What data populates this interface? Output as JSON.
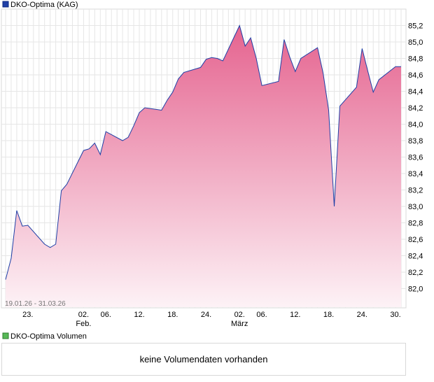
{
  "chart_data": [
    {
      "type": "area",
      "legend": "DKO-Optima (KAG)",
      "date_range_label": "19.01.26 - 31.03.26",
      "ylim": [
        81.88,
        85.38
      ],
      "y_ticks": [
        "82,0",
        "82,2",
        "82,4",
        "82,6",
        "82,8",
        "83,0",
        "83,2",
        "83,4",
        "83,6",
        "83,8",
        "84,0",
        "84,2",
        "84,4",
        "84,6",
        "84,8",
        "85,0",
        "85,2"
      ],
      "x_ticks": [
        {
          "label": "23.",
          "sub": "",
          "date": "2026-01-23"
        },
        {
          "label": "02.",
          "sub": "Feb.",
          "date": "2026-02-02"
        },
        {
          "label": "06.",
          "sub": "",
          "date": "2026-02-06"
        },
        {
          "label": "12.",
          "sub": "",
          "date": "2026-02-12"
        },
        {
          "label": "18.",
          "sub": "",
          "date": "2026-02-18"
        },
        {
          "label": "24.",
          "sub": "",
          "date": "2026-02-24"
        },
        {
          "label": "02.",
          "sub": "März",
          "date": "2026-03-02"
        },
        {
          "label": "06.",
          "sub": "",
          "date": "2026-03-06"
        },
        {
          "label": "12.",
          "sub": "",
          "date": "2026-03-12"
        },
        {
          "label": "18.",
          "sub": "",
          "date": "2026-03-18"
        },
        {
          "label": "24.",
          "sub": "",
          "date": "2026-03-24"
        },
        {
          "label": "30.",
          "sub": "",
          "date": "2026-03-30"
        }
      ],
      "x_range": [
        "2026-01-19",
        "2026-03-31"
      ],
      "series": [
        {
          "dates": [
            "2026-01-19",
            "2026-01-20",
            "2026-01-21",
            "2026-01-22",
            "2026-01-23",
            "2026-01-26",
            "2026-01-27",
            "2026-01-28",
            "2026-01-29",
            "2026-01-30",
            "2026-02-02",
            "2026-02-03",
            "2026-02-04",
            "2026-02-05",
            "2026-02-06",
            "2026-02-09",
            "2026-02-10",
            "2026-02-11",
            "2026-02-12",
            "2026-02-13",
            "2026-02-16",
            "2026-02-17",
            "2026-02-18",
            "2026-02-19",
            "2026-02-20",
            "2026-02-23",
            "2026-02-24",
            "2026-02-25",
            "2026-02-26",
            "2026-02-27",
            "2026-03-02",
            "2026-03-03",
            "2026-03-04",
            "2026-03-05",
            "2026-03-06",
            "2026-03-09",
            "2026-03-10",
            "2026-03-11",
            "2026-03-12",
            "2026-03-13",
            "2026-03-16",
            "2026-03-17",
            "2026-03-18",
            "2026-03-19",
            "2026-03-20",
            "2026-03-23",
            "2026-03-24",
            "2026-03-25",
            "2026-03-26",
            "2026-03-27",
            "2026-03-30",
            "2026-03-31"
          ],
          "values": [
            82.11,
            82.37,
            82.95,
            82.76,
            82.77,
            82.54,
            82.5,
            82.54,
            83.19,
            83.27,
            83.68,
            83.7,
            83.77,
            83.63,
            83.91,
            83.8,
            83.84,
            83.98,
            84.14,
            84.2,
            84.17,
            84.29,
            84.39,
            84.55,
            84.63,
            84.69,
            84.79,
            84.81,
            84.8,
            84.77,
            85.2,
            84.95,
            85.05,
            84.8,
            84.47,
            84.52,
            85.03,
            84.82,
            84.64,
            84.8,
            84.93,
            84.62,
            84.17,
            83.0,
            84.22,
            84.45,
            84.92,
            84.65,
            84.39,
            84.54,
            84.7,
            84.7
          ],
          "colors": {
            "line": "#1f3fa6",
            "fill_top": "#e5638f",
            "fill_bottom": "#fdf2f6"
          }
        }
      ],
      "grid": true
    },
    {
      "type": "bar",
      "legend": "DKO-Optima Volumen",
      "message": "keine Volumendaten vorhanden",
      "colors": {
        "legend_box": "#57b957"
      }
    }
  ]
}
